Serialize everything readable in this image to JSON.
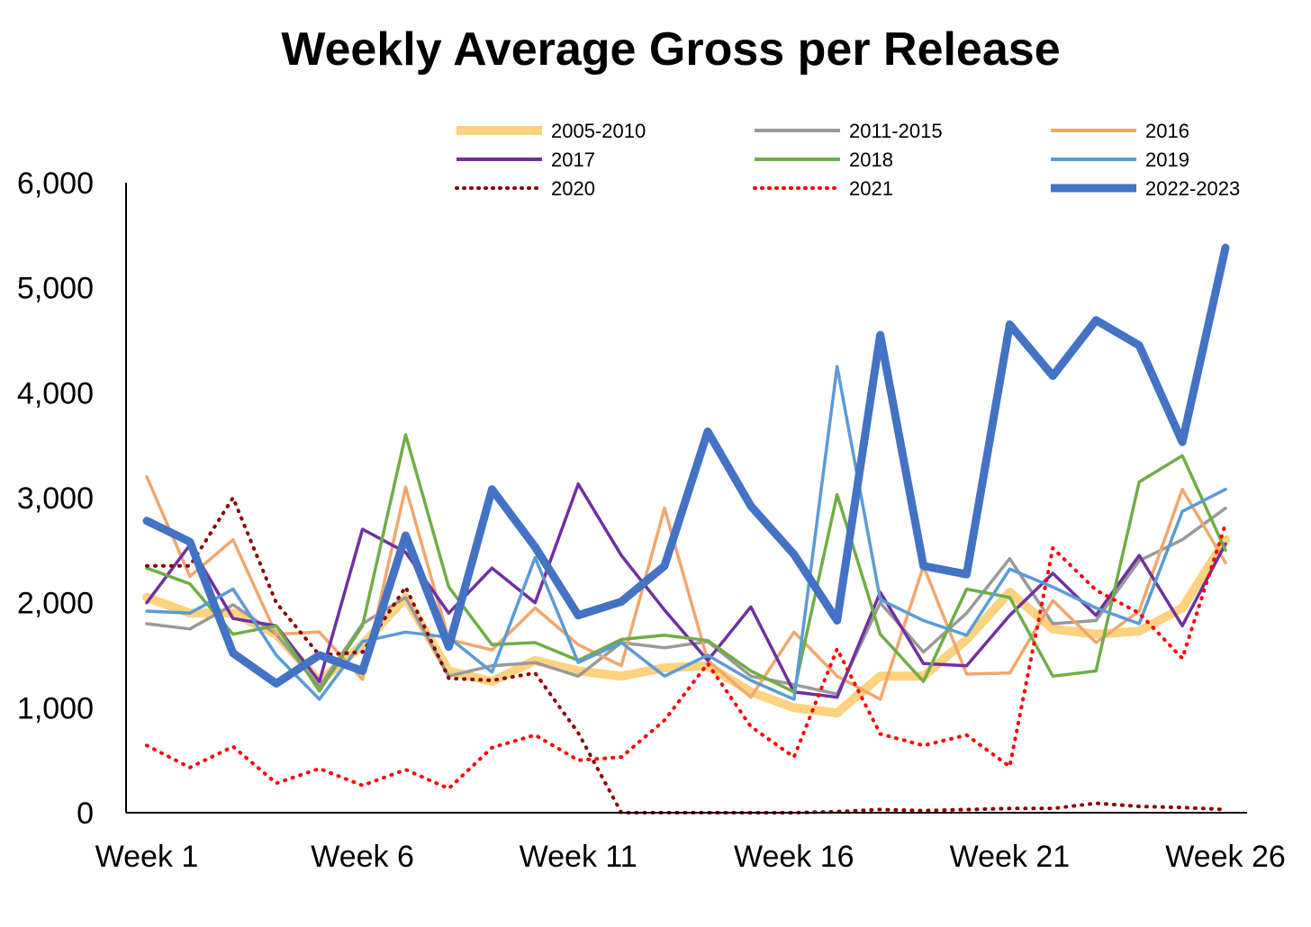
{
  "chart_data": {
    "type": "line",
    "title": "Weekly Average Gross per Release",
    "xlabel": "",
    "ylabel": "",
    "ylim": [
      0,
      6000
    ],
    "yticks": [
      0,
      1000,
      2000,
      3000,
      4000,
      5000,
      6000
    ],
    "ytick_labels": [
      "0",
      "1,000",
      "2,000",
      "3,000",
      "4,000",
      "5,000",
      "6,000"
    ],
    "x": [
      1,
      2,
      3,
      4,
      5,
      6,
      7,
      8,
      9,
      10,
      11,
      12,
      13,
      14,
      15,
      16,
      17,
      18,
      19,
      20,
      21,
      22,
      23,
      24,
      25,
      26
    ],
    "xticks": [
      1,
      6,
      11,
      16,
      21,
      26
    ],
    "xtick_labels": [
      "Week 1",
      "Week 6",
      "Week 11",
      "Week 16",
      "Week 21",
      "Week 26"
    ],
    "grid": false,
    "legend_position": "top",
    "series": [
      {
        "name": "2005-2010",
        "color": "#FFD27F",
        "style": "solid",
        "weight": "thick",
        "values": [
          2050,
          1900,
          1900,
          1700,
          1250,
          1600,
          2050,
          1350,
          1250,
          1450,
          1350,
          1300,
          1380,
          1400,
          1150,
          1000,
          950,
          1300,
          1300,
          1650,
          2100,
          1750,
          1700,
          1730,
          1950,
          2600
        ]
      },
      {
        "name": "2011-2015",
        "color": "#999999",
        "style": "solid",
        "weight": "normal",
        "values": [
          1800,
          1750,
          1980,
          1700,
          1200,
          1800,
          2050,
          1300,
          1400,
          1430,
          1300,
          1620,
          1570,
          1630,
          1300,
          1220,
          1130,
          2000,
          1530,
          1900,
          2420,
          1800,
          1830,
          2400,
          2600,
          2900
        ]
      },
      {
        "name": "2016",
        "color": "#F0A76E",
        "style": "solid",
        "weight": "normal",
        "values": [
          3200,
          2250,
          2600,
          1700,
          1720,
          1270,
          3100,
          1650,
          1550,
          1950,
          1600,
          1400,
          2900,
          1450,
          1100,
          1720,
          1300,
          1080,
          2350,
          1320,
          1330,
          2020,
          1620,
          1920,
          3080,
          2380
        ]
      },
      {
        "name": "2017",
        "color": "#7030A0",
        "style": "solid",
        "weight": "normal",
        "values": [
          2000,
          2550,
          1850,
          1780,
          1250,
          2700,
          2480,
          1900,
          2330,
          2000,
          3130,
          2450,
          1930,
          1450,
          1960,
          1150,
          1100,
          2100,
          1420,
          1400,
          1880,
          2280,
          1880,
          2450,
          1780,
          2560
        ]
      },
      {
        "name": "2018",
        "color": "#70AD47",
        "style": "solid",
        "weight": "normal",
        "values": [
          2330,
          2180,
          1700,
          1780,
          1160,
          1780,
          3600,
          2150,
          1600,
          1620,
          1450,
          1650,
          1690,
          1640,
          1350,
          1150,
          3030,
          1700,
          1250,
          2130,
          2050,
          1300,
          1350,
          3150,
          3400,
          2500
        ]
      },
      {
        "name": "2019",
        "color": "#5B9BD5",
        "style": "solid",
        "weight": "normal",
        "values": [
          1920,
          1900,
          2130,
          1500,
          1080,
          1630,
          1720,
          1670,
          1340,
          2430,
          1430,
          1620,
          1300,
          1500,
          1260,
          1080,
          4250,
          2030,
          1830,
          1690,
          2320,
          2150,
          1950,
          1800,
          2870,
          3080
        ]
      },
      {
        "name": "2020",
        "color": "#8B0000",
        "style": "dotted",
        "weight": "normal",
        "values": [
          2350,
          2350,
          3000,
          2000,
          1500,
          1530,
          2150,
          1280,
          1260,
          1330,
          760,
          0,
          0,
          0,
          0,
          0,
          10,
          30,
          20,
          30,
          40,
          40,
          90,
          60,
          50,
          30
        ]
      },
      {
        "name": "2021",
        "color": "#FF0000",
        "style": "dotted",
        "weight": "normal",
        "values": [
          640,
          430,
          630,
          280,
          420,
          260,
          410,
          230,
          620,
          740,
          500,
          530,
          880,
          1420,
          820,
          530,
          1560,
          750,
          640,
          740,
          440,
          2520,
          2120,
          1900,
          1470,
          2750
        ]
      },
      {
        "name": "2022-2023",
        "color": "#4472C4",
        "style": "solid",
        "weight": "extra",
        "values": [
          2780,
          2580,
          1520,
          1230,
          1500,
          1350,
          2640,
          1580,
          3080,
          2530,
          1880,
          2010,
          2350,
          3630,
          2920,
          2460,
          1830,
          4550,
          2350,
          2270,
          4650,
          4160,
          4690,
          4450,
          3530,
          5380
        ]
      }
    ]
  }
}
